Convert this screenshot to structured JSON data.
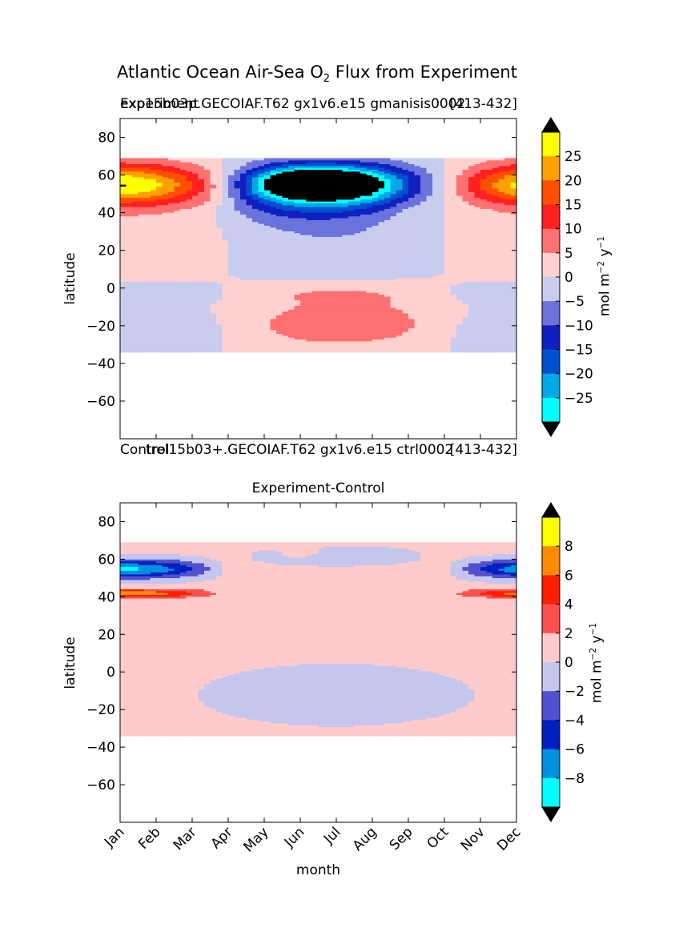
{
  "figure": {
    "title_prefix": "Atlantic Ocean Air-Sea O",
    "title_sub": "2",
    "title_suffix": " Flux from Experiment"
  },
  "colors": {
    "bg": "#ffffff",
    "land_or_undefined": "#000000",
    "contour_line": "#555555"
  },
  "chart_data": [
    {
      "type": "heatmap",
      "name": "experiment",
      "title_left": "exp15b03p.GECOIAF.T62 gx1v6.e15 gmanisis0002",
      "title_right": "[413-432]",
      "overlap_left_text": "Experiment",
      "xlabel": "",
      "ylabel": "latitude",
      "x_categories": [
        "Jan",
        "Feb",
        "Mar",
        "Apr",
        "May",
        "Jun",
        "Jul",
        "Aug",
        "Sep",
        "Oct",
        "Nov",
        "Dec"
      ],
      "ylim": [
        -80,
        90
      ],
      "yticks": [
        80,
        60,
        40,
        20,
        0,
        -20,
        -40,
        -60
      ],
      "data_lat_range": [
        -34,
        69
      ],
      "colorbar": {
        "label": "mol m^-2 y^-1",
        "tick_labels": [
          "25",
          "20",
          "15",
          "10",
          "5",
          "0",
          "-5",
          "-10",
          "-15",
          "-20",
          "-25"
        ],
        "levels": [
          -30,
          -25,
          -20,
          -15,
          -10,
          -5,
          0,
          5,
          10,
          15,
          20,
          25,
          30
        ],
        "colors": [
          "#00ffff",
          "#00a8e8",
          "#0050d0",
          "#1020c0",
          "#6a72dc",
          "#c8ccee",
          "#ffd0d0",
          "#ff7070",
          "#ff2020",
          "#ff5000",
          "#ffa000",
          "#ffff00"
        ],
        "extend_color": "#000000"
      }
    },
    {
      "type": "heatmap",
      "name": "control",
      "title_left": "trel15b03+.GECOIAF.T62 gx1v6.e15 ctrl0002",
      "title_right": "[413-432]",
      "overlap_left_text": "Control"
    },
    {
      "type": "heatmap",
      "name": "difference",
      "title": "Experiment-Control",
      "xlabel": "month",
      "ylabel": "latitude",
      "x_categories": [
        "Jan",
        "Feb",
        "Mar",
        "Apr",
        "May",
        "Jun",
        "Jul",
        "Aug",
        "Sep",
        "Oct",
        "Nov",
        "Dec"
      ],
      "ylim": [
        -80,
        90
      ],
      "yticks": [
        80,
        60,
        40,
        20,
        0,
        -20,
        -40,
        -60
      ],
      "data_lat_range": [
        -34,
        69
      ],
      "colorbar": {
        "label": "mol m^-2 y^-1",
        "tick_labels": [
          "8",
          "6",
          "4",
          "2",
          "0",
          "-2",
          "-4",
          "-6",
          "-8"
        ],
        "levels": [
          -10,
          -8,
          -6,
          -4,
          -2,
          0,
          2,
          4,
          6,
          8,
          10
        ],
        "colors": [
          "#00ffff",
          "#0090e0",
          "#0020c0",
          "#5050d0",
          "#c4c6ee",
          "#ffcaca",
          "#ff5050",
          "#ff2000",
          "#ff8c00",
          "#ffff00"
        ],
        "extend_color": "#000000"
      }
    }
  ]
}
